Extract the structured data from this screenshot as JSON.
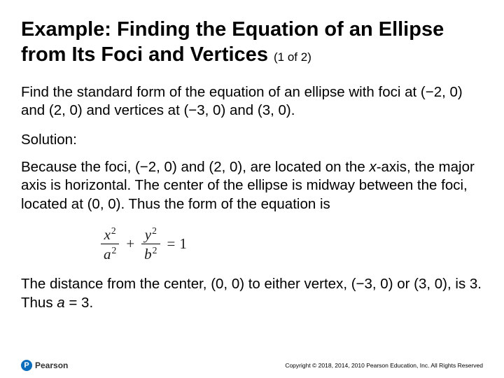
{
  "title": {
    "main": "Example: Finding the Equation of an Ellipse from Its Foci and Vertices",
    "sub": "(1 of 2)"
  },
  "problem": "Find the standard form of the equation of an ellipse with foci at (−2, 0) and (2, 0) and vertices at (−3, 0) and (3, 0).",
  "solution_label": "Solution:",
  "explanation1_a": "Because the foci, (−2, 0) and (2, 0), are located on the ",
  "explanation1_axis": "x",
  "explanation1_b": "-axis, the major axis is horizontal. The center of the ellipse is midway between the foci, located at (0, 0). Thus the form of the equation is",
  "equation": {
    "num1_var": "x",
    "num1_exp": "2",
    "den1_var": "a",
    "den1_exp": "2",
    "plus": "+",
    "num2_var": "y",
    "num2_exp": "2",
    "den2_var": "b",
    "den2_exp": "2",
    "eq": "=",
    "rhs": "1"
  },
  "explanation2_a": "The distance from the center, (0, 0) to either vertex, (−3, 0) or (3, 0), is 3. Thus ",
  "explanation2_var": "a",
  "explanation2_b": " = 3.",
  "logo": {
    "letter": "P",
    "brand": "Pearson"
  },
  "copyright": "Copyright © 2018, 2014, 2010 Pearson Education, Inc. All Rights Reserved"
}
